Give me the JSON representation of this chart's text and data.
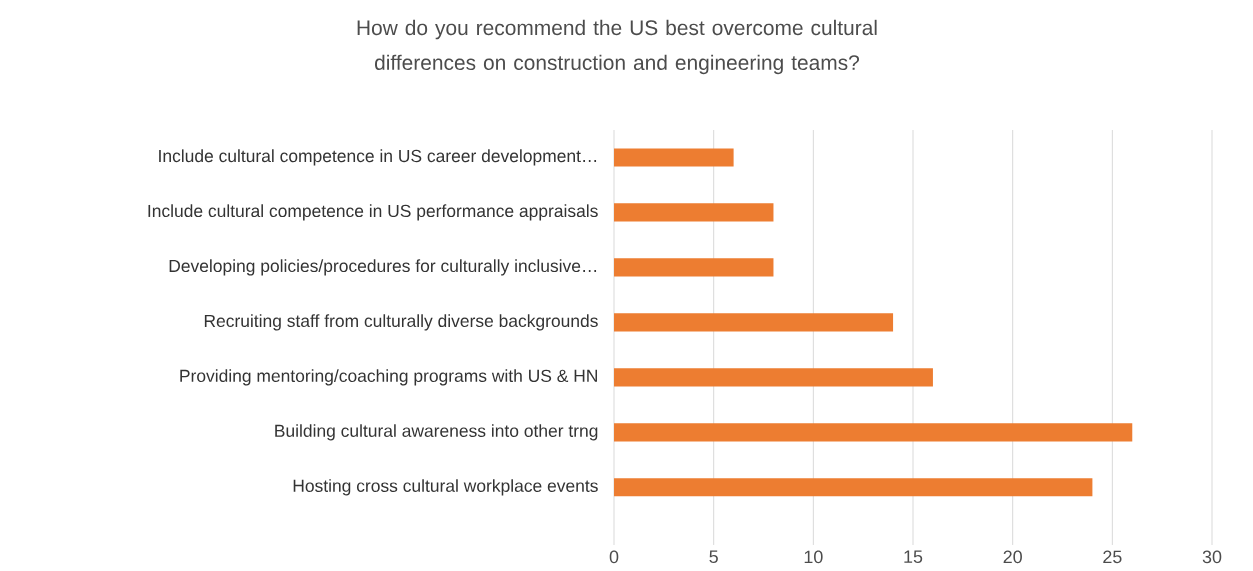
{
  "chart_data": {
    "type": "bar",
    "orientation": "horizontal",
    "title": "How do you recommend the US best overcome cultural differences on construction and engineering teams?",
    "categories": [
      "Include cultural competence in US career development…",
      "Include cultural competence in US performance appraisals",
      "Developing policies/procedures for culturally inclusive…",
      "Recruiting staff from culturally diverse backgrounds",
      "Providing mentoring/coaching programs with US & HN",
      "Building cultural awareness into other trng",
      "Hosting cross cultural workplace events"
    ],
    "values": [
      6,
      8,
      8,
      14,
      16,
      26,
      24
    ],
    "color": "#ed7d31",
    "xlim": [
      0,
      30
    ],
    "xticks": [
      0,
      5,
      10,
      15,
      20,
      25,
      30
    ],
    "grid": "x"
  }
}
